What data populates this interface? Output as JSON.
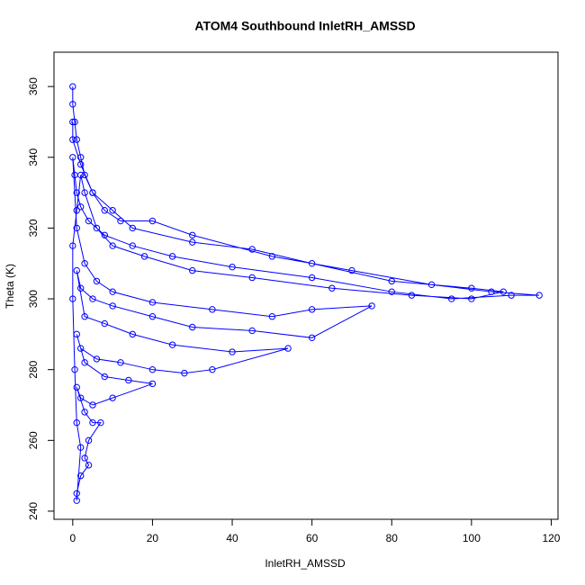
{
  "chart_data": {
    "type": "scatter",
    "title": "ATOM4 Southbound InletRH_AMSSD",
    "x_label": "InletRH_AMSSD",
    "y_label": "Theta (K)",
    "xlim": [
      -4.7,
      121.7
    ],
    "ylim": [
      237.7,
      369.7
    ],
    "xticks": [
      0,
      20,
      40,
      60,
      80,
      100,
      120
    ],
    "yticks": [
      240,
      260,
      280,
      300,
      320,
      340,
      360
    ],
    "series": [
      {
        "color": "#0000ff",
        "x": [
          0,
          0,
          0.5,
          1,
          2,
          3,
          5,
          8,
          12,
          20,
          30,
          50,
          70,
          90,
          105,
          117,
          110,
          95,
          80,
          60,
          40,
          25,
          15,
          8,
          4,
          2,
          1,
          0.5,
          0,
          1,
          3,
          6,
          10,
          20,
          35,
          50,
          60,
          75,
          60,
          45,
          30,
          20,
          10,
          5,
          2,
          1,
          3,
          8,
          15,
          25,
          40,
          54,
          35,
          28,
          20,
          12,
          6,
          2,
          1,
          3,
          8,
          14,
          20,
          10,
          5,
          2,
          1,
          3,
          5,
          7,
          4,
          3,
          4,
          2,
          1,
          1,
          2,
          1,
          0.5,
          0,
          0,
          1,
          2,
          3,
          6,
          10,
          18,
          30,
          45,
          65,
          85,
          100,
          108,
          100,
          80,
          60,
          45,
          30,
          15,
          10,
          5,
          2,
          0,
          0
        ],
        "values": [
          360,
          355,
          350,
          345,
          340,
          335,
          330,
          325,
          322,
          322,
          318,
          312,
          308,
          304,
          302,
          301,
          301,
          300,
          302,
          306,
          309,
          312,
          315,
          318,
          322,
          326,
          330,
          335,
          340,
          320,
          310,
          305,
          302,
          299,
          297,
          295,
          297,
          298,
          289,
          291,
          292,
          295,
          298,
          300,
          303,
          308,
          295,
          293,
          290,
          287,
          285,
          286,
          280,
          279,
          280,
          282,
          283,
          286,
          290,
          282,
          278,
          277,
          276,
          272,
          270,
          272,
          275,
          268,
          265,
          265,
          260,
          255,
          253,
          250,
          245,
          243,
          258,
          265,
          280,
          300,
          315,
          325,
          335,
          330,
          320,
          315,
          312,
          308,
          306,
          303,
          301,
          300,
          302,
          303,
          305,
          310,
          314,
          316,
          320,
          325,
          330,
          338,
          345,
          350
        ]
      }
    ]
  }
}
